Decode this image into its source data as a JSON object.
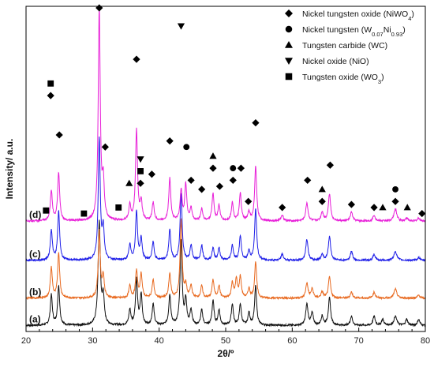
{
  "chart_data": {
    "type": "line",
    "xlabel": "2θ/º",
    "ylabel": "Intensity/ a.u.",
    "xlim": [
      20,
      80
    ],
    "x_ticks": [
      "20",
      "30",
      "40",
      "50",
      "60",
      "70",
      "80"
    ],
    "grid": false,
    "legend_position": "top-right",
    "series": [
      {
        "name": "(a)",
        "color": "#111111",
        "baseline": 0.02,
        "noise": 0.003,
        "peaks": [
          {
            "x": 23.8,
            "h": 0.1,
            "w": 0.18
          },
          {
            "x": 24.9,
            "h": 0.13,
            "w": 0.18
          },
          {
            "x": 31.0,
            "h": 0.34,
            "w": 0.2
          },
          {
            "x": 31.6,
            "h": 0.09,
            "w": 0.18
          },
          {
            "x": 35.6,
            "h": 0.05,
            "w": 0.18
          },
          {
            "x": 36.6,
            "h": 0.15,
            "w": 0.18
          },
          {
            "x": 37.3,
            "h": 0.1,
            "w": 0.18
          },
          {
            "x": 39.1,
            "h": 0.07,
            "w": 0.18
          },
          {
            "x": 41.6,
            "h": 0.1,
            "w": 0.18
          },
          {
            "x": 43.3,
            "h": 0.28,
            "w": 0.18
          },
          {
            "x": 44.0,
            "h": 0.08,
            "w": 0.18
          },
          {
            "x": 44.8,
            "h": 0.05,
            "w": 0.18
          },
          {
            "x": 46.4,
            "h": 0.05,
            "w": 0.18
          },
          {
            "x": 48.1,
            "h": 0.08,
            "w": 0.18
          },
          {
            "x": 49.0,
            "h": 0.05,
            "w": 0.18
          },
          {
            "x": 51.0,
            "h": 0.07,
            "w": 0.18
          },
          {
            "x": 52.2,
            "h": 0.07,
            "w": 0.18
          },
          {
            "x": 53.5,
            "h": 0.04,
            "w": 0.18
          },
          {
            "x": 54.5,
            "h": 0.13,
            "w": 0.18
          },
          {
            "x": 62.2,
            "h": 0.07,
            "w": 0.2
          },
          {
            "x": 63.0,
            "h": 0.04,
            "w": 0.2
          },
          {
            "x": 64.5,
            "h": 0.03,
            "w": 0.2
          },
          {
            "x": 65.6,
            "h": 0.09,
            "w": 0.2
          },
          {
            "x": 68.9,
            "h": 0.03,
            "w": 0.2
          },
          {
            "x": 72.3,
            "h": 0.03,
            "w": 0.2
          },
          {
            "x": 73.6,
            "h": 0.02,
            "w": 0.2
          },
          {
            "x": 75.5,
            "h": 0.03,
            "w": 0.25
          },
          {
            "x": 77.2,
            "h": 0.02,
            "w": 0.2
          },
          {
            "x": 79.0,
            "h": 0.02,
            "w": 0.2
          }
        ]
      },
      {
        "name": "(b)",
        "color": "#e8691f",
        "baseline": 0.11,
        "noise": 0.003,
        "peaks": [
          {
            "x": 23.8,
            "h": 0.1,
            "w": 0.18
          },
          {
            "x": 24.9,
            "h": 0.15,
            "w": 0.18
          },
          {
            "x": 31.0,
            "h": 0.22,
            "w": 0.18
          },
          {
            "x": 31.6,
            "h": 0.07,
            "w": 0.18
          },
          {
            "x": 35.6,
            "h": 0.04,
            "w": 0.18
          },
          {
            "x": 36.6,
            "h": 0.09,
            "w": 0.18
          },
          {
            "x": 37.3,
            "h": 0.08,
            "w": 0.18
          },
          {
            "x": 39.1,
            "h": 0.06,
            "w": 0.18
          },
          {
            "x": 41.6,
            "h": 0.08,
            "w": 0.18
          },
          {
            "x": 43.3,
            "h": 0.26,
            "w": 0.18
          },
          {
            "x": 44.0,
            "h": 0.04,
            "w": 0.18
          },
          {
            "x": 44.8,
            "h": 0.04,
            "w": 0.18
          },
          {
            "x": 46.4,
            "h": 0.04,
            "w": 0.18
          },
          {
            "x": 48.1,
            "h": 0.06,
            "w": 0.18
          },
          {
            "x": 49.0,
            "h": 0.04,
            "w": 0.18
          },
          {
            "x": 51.0,
            "h": 0.05,
            "w": 0.18
          },
          {
            "x": 51.6,
            "h": 0.06,
            "w": 0.18
          },
          {
            "x": 52.2,
            "h": 0.07,
            "w": 0.18
          },
          {
            "x": 53.5,
            "h": 0.03,
            "w": 0.18
          },
          {
            "x": 54.5,
            "h": 0.12,
            "w": 0.18
          },
          {
            "x": 62.2,
            "h": 0.05,
            "w": 0.2
          },
          {
            "x": 63.0,
            "h": 0.03,
            "w": 0.2
          },
          {
            "x": 64.5,
            "h": 0.02,
            "w": 0.2
          },
          {
            "x": 65.6,
            "h": 0.07,
            "w": 0.2
          },
          {
            "x": 68.9,
            "h": 0.02,
            "w": 0.2
          },
          {
            "x": 72.3,
            "h": 0.02,
            "w": 0.2
          },
          {
            "x": 75.5,
            "h": 0.03,
            "w": 0.25
          },
          {
            "x": 79.0,
            "h": 0.01,
            "w": 0.2
          }
        ]
      },
      {
        "name": "(c)",
        "color": "#1f1fe8",
        "baseline": 0.235,
        "noise": 0.003,
        "peaks": [
          {
            "x": 23.8,
            "h": 0.1,
            "w": 0.18
          },
          {
            "x": 24.9,
            "h": 0.16,
            "w": 0.18
          },
          {
            "x": 31.0,
            "h": 0.4,
            "w": 0.18
          },
          {
            "x": 31.6,
            "h": 0.1,
            "w": 0.18
          },
          {
            "x": 35.6,
            "h": 0.05,
            "w": 0.18
          },
          {
            "x": 36.6,
            "h": 0.16,
            "w": 0.18
          },
          {
            "x": 37.3,
            "h": 0.07,
            "w": 0.18
          },
          {
            "x": 39.1,
            "h": 0.06,
            "w": 0.18
          },
          {
            "x": 41.6,
            "h": 0.1,
            "w": 0.18
          },
          {
            "x": 43.3,
            "h": 0.22,
            "w": 0.18
          },
          {
            "x": 44.8,
            "h": 0.05,
            "w": 0.18
          },
          {
            "x": 46.4,
            "h": 0.05,
            "w": 0.18
          },
          {
            "x": 48.1,
            "h": 0.04,
            "w": 0.18
          },
          {
            "x": 49.0,
            "h": 0.04,
            "w": 0.18
          },
          {
            "x": 51.0,
            "h": 0.05,
            "w": 0.18
          },
          {
            "x": 52.2,
            "h": 0.08,
            "w": 0.18
          },
          {
            "x": 53.5,
            "h": 0.03,
            "w": 0.18
          },
          {
            "x": 54.5,
            "h": 0.17,
            "w": 0.18
          },
          {
            "x": 58.5,
            "h": 0.02,
            "w": 0.2
          },
          {
            "x": 62.2,
            "h": 0.07,
            "w": 0.2
          },
          {
            "x": 64.5,
            "h": 0.02,
            "w": 0.2
          },
          {
            "x": 65.6,
            "h": 0.08,
            "w": 0.2
          },
          {
            "x": 68.9,
            "h": 0.03,
            "w": 0.2
          },
          {
            "x": 72.3,
            "h": 0.02,
            "w": 0.2
          },
          {
            "x": 75.5,
            "h": 0.03,
            "w": 0.25
          },
          {
            "x": 79.0,
            "h": 0.01,
            "w": 0.2
          }
        ]
      },
      {
        "name": "(d)",
        "color": "#e81fd8",
        "baseline": 0.365,
        "noise": 0.003,
        "peaks": [
          {
            "x": 23.8,
            "h": 0.1,
            "w": 0.18
          },
          {
            "x": 24.9,
            "h": 0.16,
            "w": 0.18
          },
          {
            "x": 31.0,
            "h": 0.7,
            "w": 0.18
          },
          {
            "x": 31.6,
            "h": 0.12,
            "w": 0.18
          },
          {
            "x": 35.6,
            "h": 0.05,
            "w": 0.18
          },
          {
            "x": 36.6,
            "h": 0.3,
            "w": 0.18
          },
          {
            "x": 37.3,
            "h": 0.06,
            "w": 0.18
          },
          {
            "x": 39.1,
            "h": 0.06,
            "w": 0.18
          },
          {
            "x": 41.6,
            "h": 0.14,
            "w": 0.18
          },
          {
            "x": 43.3,
            "h": 0.1,
            "w": 0.18
          },
          {
            "x": 44.0,
            "h": 0.12,
            "w": 0.18
          },
          {
            "x": 44.8,
            "h": 0.04,
            "w": 0.18
          },
          {
            "x": 46.4,
            "h": 0.04,
            "w": 0.18
          },
          {
            "x": 48.1,
            "h": 0.09,
            "w": 0.18
          },
          {
            "x": 49.0,
            "h": 0.05,
            "w": 0.18
          },
          {
            "x": 51.0,
            "h": 0.06,
            "w": 0.18
          },
          {
            "x": 52.2,
            "h": 0.09,
            "w": 0.18
          },
          {
            "x": 53.5,
            "h": 0.03,
            "w": 0.18
          },
          {
            "x": 54.5,
            "h": 0.18,
            "w": 0.18
          },
          {
            "x": 58.5,
            "h": 0.02,
            "w": 0.2
          },
          {
            "x": 62.2,
            "h": 0.06,
            "w": 0.2
          },
          {
            "x": 64.5,
            "h": 0.03,
            "w": 0.2
          },
          {
            "x": 65.6,
            "h": 0.09,
            "w": 0.2
          },
          {
            "x": 68.9,
            "h": 0.03,
            "w": 0.2
          },
          {
            "x": 72.3,
            "h": 0.02,
            "w": 0.2
          },
          {
            "x": 75.5,
            "h": 0.04,
            "w": 0.25
          },
          {
            "x": 77.2,
            "h": 0.01,
            "w": 0.2
          },
          {
            "x": 79.0,
            "h": 0.01,
            "w": 0.2
          }
        ]
      }
    ],
    "legend": [
      {
        "marker": "diamond",
        "label": "Nickel tungsten oxide (NiWO",
        "sub": "4",
        "suffix": ")"
      },
      {
        "marker": "circle",
        "label": "Nickel tungsten (W",
        "sub": "0.07",
        "mid": "Ni",
        "sub2": "0.93",
        "suffix": ")"
      },
      {
        "marker": "triangle-up",
        "label": "Tungsten carbide (WC)"
      },
      {
        "marker": "triangle-down",
        "label": "Nickel oxide (NiO)"
      },
      {
        "marker": "square",
        "label": "Tungsten oxide (WO",
        "sub": "3",
        "suffix": ")"
      }
    ],
    "phase_markers": [
      {
        "x": 23.0,
        "y": 0.4,
        "marker": "square"
      },
      {
        "x": 28.7,
        "y": 0.39,
        "marker": "square"
      },
      {
        "x": 33.9,
        "y": 0.41,
        "marker": "square"
      },
      {
        "x": 23.7,
        "y": 0.82,
        "marker": "square"
      },
      {
        "x": 23.7,
        "y": 0.78,
        "marker": "diamond"
      },
      {
        "x": 25.0,
        "y": 0.65,
        "marker": "diamond"
      },
      {
        "x": 31.0,
        "y": 1.07,
        "marker": "diamond"
      },
      {
        "x": 31.9,
        "y": 0.61,
        "marker": "diamond"
      },
      {
        "x": 35.5,
        "y": 0.49,
        "marker": "triangle-up"
      },
      {
        "x": 36.6,
        "y": 0.9,
        "marker": "diamond"
      },
      {
        "x": 37.2,
        "y": 0.57,
        "marker": "triangle-down"
      },
      {
        "x": 37.2,
        "y": 0.53,
        "marker": "square"
      },
      {
        "x": 37.2,
        "y": 0.49,
        "marker": "diamond"
      },
      {
        "x": 38.9,
        "y": 0.52,
        "marker": "diamond"
      },
      {
        "x": 41.6,
        "y": 0.63,
        "marker": "diamond"
      },
      {
        "x": 43.3,
        "y": 1.01,
        "marker": "triangle-down"
      },
      {
        "x": 44.1,
        "y": 0.61,
        "marker": "circle"
      },
      {
        "x": 44.8,
        "y": 0.5,
        "marker": "diamond"
      },
      {
        "x": 46.4,
        "y": 0.47,
        "marker": "diamond"
      },
      {
        "x": 48.1,
        "y": 0.58,
        "marker": "triangle-up"
      },
      {
        "x": 48.1,
        "y": 0.54,
        "marker": "diamond"
      },
      {
        "x": 49.1,
        "y": 0.48,
        "marker": "diamond"
      },
      {
        "x": 51.1,
        "y": 0.54,
        "marker": "circle"
      },
      {
        "x": 51.1,
        "y": 0.5,
        "marker": "diamond"
      },
      {
        "x": 52.3,
        "y": 0.54,
        "marker": "diamond"
      },
      {
        "x": 53.4,
        "y": 0.43,
        "marker": "diamond"
      },
      {
        "x": 54.5,
        "y": 0.69,
        "marker": "diamond"
      },
      {
        "x": 58.5,
        "y": 0.41,
        "marker": "diamond"
      },
      {
        "x": 62.3,
        "y": 0.5,
        "marker": "diamond"
      },
      {
        "x": 64.5,
        "y": 0.47,
        "marker": "triangle-up"
      },
      {
        "x": 64.5,
        "y": 0.43,
        "marker": "diamond"
      },
      {
        "x": 65.7,
        "y": 0.55,
        "marker": "diamond"
      },
      {
        "x": 68.9,
        "y": 0.42,
        "marker": "diamond"
      },
      {
        "x": 72.3,
        "y": 0.41,
        "marker": "diamond"
      },
      {
        "x": 73.6,
        "y": 0.41,
        "marker": "triangle-up"
      },
      {
        "x": 75.5,
        "y": 0.47,
        "marker": "circle"
      },
      {
        "x": 75.5,
        "y": 0.43,
        "marker": "diamond"
      },
      {
        "x": 77.3,
        "y": 0.41,
        "marker": "triangle-up"
      },
      {
        "x": 79.5,
        "y": 0.39,
        "marker": "diamond"
      }
    ]
  }
}
